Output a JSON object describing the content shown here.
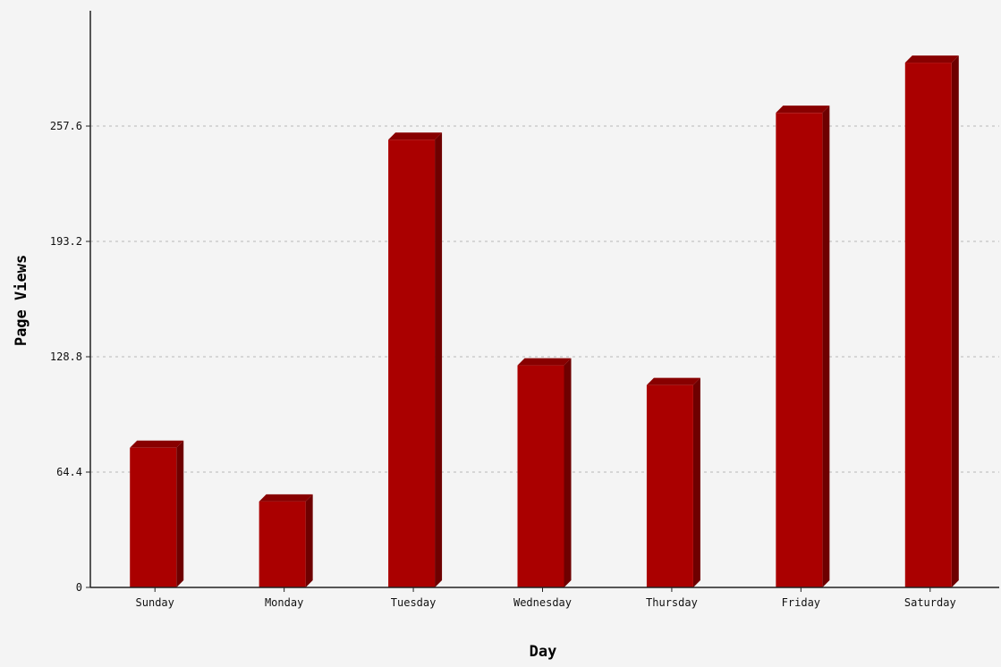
{
  "chart_data": {
    "type": "bar",
    "title": "",
    "xlabel": "Day",
    "ylabel": "Page Views",
    "categories": [
      "Sunday",
      "Monday",
      "Tuesday",
      "Wednesday",
      "Thursday",
      "Friday",
      "Saturday"
    ],
    "values": [
      78,
      48,
      250,
      124,
      113,
      265,
      293
    ],
    "yticks": [
      "0",
      "64.4",
      "128.8",
      "193.2",
      "257.6"
    ],
    "ylim": [
      0,
      322
    ],
    "grid": true,
    "legend": "none",
    "colors": {
      "bar_front": "#aa0000",
      "bar_side": "#6e0000",
      "bar_top": "#880000",
      "background": "#f4f4f4"
    }
  }
}
